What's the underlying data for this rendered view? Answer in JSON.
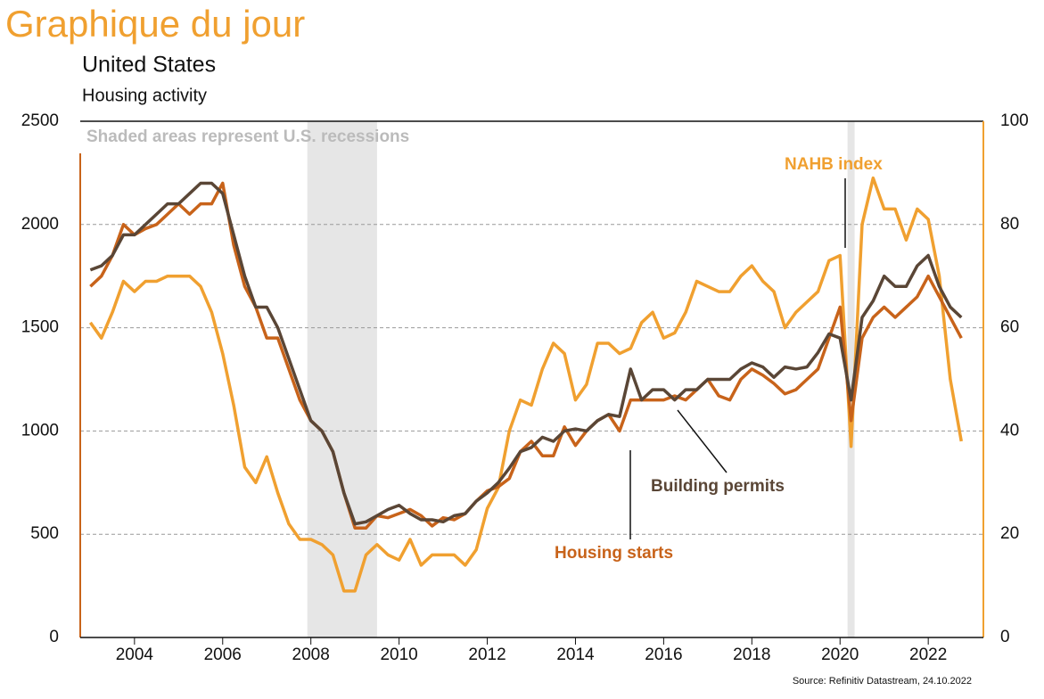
{
  "chart_data": {
    "type": "line",
    "title": "Graphique du jour",
    "subtitle": "United States",
    "ylabel": "Housing activity",
    "annotations": {
      "recessions_note": "Shaded areas represent U.S. recessions",
      "nahb": "NAHB index",
      "permits": "Building permits",
      "starts": "Housing starts",
      "source": "Source: Refinitiv Datastream, 24.10.2022"
    },
    "recessions": [
      [
        2007.92,
        2009.5
      ],
      [
        2020.17,
        2020.33
      ]
    ],
    "x": [
      2003,
      2003.25,
      2003.5,
      2003.75,
      2004,
      2004.25,
      2004.5,
      2004.75,
      2005,
      2005.25,
      2005.5,
      2005.75,
      2006,
      2006.25,
      2006.5,
      2006.75,
      2007,
      2007.25,
      2007.5,
      2007.75,
      2008,
      2008.25,
      2008.5,
      2008.75,
      2009,
      2009.25,
      2009.5,
      2009.75,
      2010,
      2010.25,
      2010.5,
      2010.75,
      2011,
      2011.25,
      2011.5,
      2011.75,
      2012,
      2012.25,
      2012.5,
      2012.75,
      2013,
      2013.25,
      2013.5,
      2013.75,
      2014,
      2014.25,
      2014.5,
      2014.75,
      2015,
      2015.25,
      2015.5,
      2015.75,
      2016,
      2016.25,
      2016.5,
      2016.75,
      2017,
      2017.25,
      2017.5,
      2017.75,
      2018,
      2018.25,
      2018.5,
      2018.75,
      2019,
      2019.25,
      2019.5,
      2019.75,
      2020,
      2020.25,
      2020.5,
      2020.75,
      2021,
      2021.25,
      2021.5,
      2021.75,
      2022,
      2022.25,
      2022.5,
      2022.75
    ],
    "series": [
      {
        "name": "Housing starts",
        "color": "#c8631a",
        "values": [
          1700,
          1750,
          1850,
          2000,
          1950,
          1980,
          2000,
          2050,
          2100,
          2050,
          2100,
          2100,
          2200,
          1900,
          1700,
          1600,
          1450,
          1450,
          1300,
          1150,
          1050,
          1000,
          900,
          700,
          530,
          530,
          590,
          580,
          600,
          620,
          590,
          540,
          580,
          570,
          600,
          660,
          710,
          730,
          770,
          900,
          950,
          880,
          880,
          1020,
          930,
          1000,
          1050,
          1080,
          1000,
          1150,
          1150,
          1150,
          1150,
          1170,
          1150,
          1200,
          1250,
          1170,
          1150,
          1250,
          1300,
          1270,
          1230,
          1180,
          1200,
          1250,
          1300,
          1450,
          1600,
          1050,
          1450,
          1550,
          1600,
          1550,
          1600,
          1650,
          1750,
          1650,
          1550,
          1450
        ]
      },
      {
        "name": "Building permits",
        "color": "#5a4636",
        "values": [
          1780,
          1800,
          1850,
          1950,
          1950,
          2000,
          2050,
          2100,
          2100,
          2150,
          2200,
          2200,
          2150,
          1950,
          1750,
          1600,
          1600,
          1500,
          1350,
          1200,
          1050,
          1000,
          900,
          700,
          550,
          560,
          590,
          620,
          640,
          600,
          570,
          570,
          560,
          590,
          600,
          660,
          700,
          750,
          820,
          900,
          920,
          970,
          950,
          1000,
          1010,
          1000,
          1050,
          1080,
          1070,
          1300,
          1150,
          1200,
          1200,
          1150,
          1200,
          1200,
          1250,
          1250,
          1250,
          1300,
          1330,
          1310,
          1260,
          1310,
          1300,
          1310,
          1380,
          1470,
          1450,
          1150,
          1550,
          1630,
          1750,
          1700,
          1700,
          1800,
          1850,
          1700,
          1600,
          1550
        ]
      },
      {
        "name": "NAHB index",
        "color": "#f0a030",
        "axis": "y2",
        "values": [
          61,
          58,
          63,
          69,
          67,
          69,
          69,
          70,
          70,
          70,
          68,
          63,
          55,
          45,
          33,
          30,
          35,
          28,
          22,
          19,
          19,
          18,
          16,
          9,
          9,
          16,
          18,
          16,
          15,
          19,
          14,
          16,
          16,
          16,
          14,
          17,
          25,
          29,
          40,
          46,
          45,
          52,
          57,
          55,
          46,
          49,
          57,
          57,
          55,
          56,
          61,
          63,
          58,
          59,
          63,
          69,
          68,
          67,
          67,
          70,
          72,
          69,
          67,
          60,
          63,
          65,
          67,
          73,
          74,
          37,
          80,
          89,
          83,
          83,
          77,
          83,
          81,
          70,
          50,
          38
        ]
      }
    ],
    "xlim": [
      2002.77,
      2023.25
    ],
    "xticks": [
      2004,
      2006,
      2008,
      2010,
      2012,
      2014,
      2016,
      2018,
      2020,
      2022
    ],
    "ylim": [
      0,
      2500
    ],
    "yticks": [
      0,
      500,
      1000,
      1500,
      2000,
      2500
    ],
    "y2lim": [
      0,
      100
    ],
    "y2ticks": [
      0,
      20,
      40,
      60,
      80,
      100
    ],
    "grid": true
  }
}
